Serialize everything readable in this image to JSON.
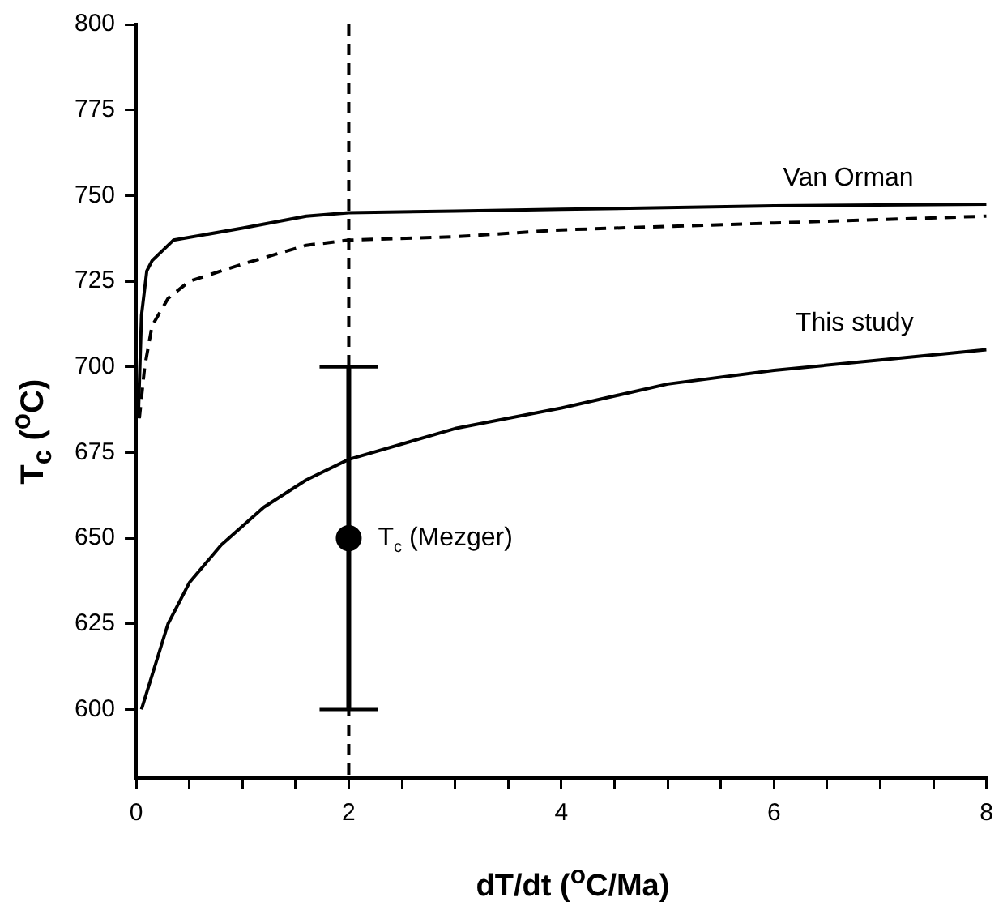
{
  "chart_data": {
    "type": "line",
    "xlabel": "dT/dt  ($^{o}$C/Ma)",
    "ylabel": "T$_{c}$ ($^{o}$C)",
    "xlim": [
      0,
      8
    ],
    "xticks": [
      0,
      {
        "value": 0.5,
        "label": null
      },
      {
        "value": 1,
        "label": null
      },
      {
        "value": 1.5,
        "label": null
      },
      2,
      {
        "value": 2.5,
        "label": null
      },
      {
        "value": 3,
        "label": null
      },
      {
        "value": 3.5,
        "label": null
      },
      4,
      {
        "value": 4.5,
        "label": null
      },
      {
        "value": 5,
        "label": null
      },
      {
        "value": 5.5,
        "label": null
      },
      6,
      {
        "value": 6.5,
        "label": null
      },
      {
        "value": 7,
        "label": null
      },
      {
        "value": 7.5,
        "label": null
      },
      8
    ],
    "ylim": [
      580,
      800
    ],
    "yticks": [
      600,
      625,
      650,
      675,
      700,
      725,
      750,
      775,
      800
    ],
    "grid": false,
    "legend": false,
    "series": [
      {
        "name": "Van Orman",
        "color": "#000000",
        "line_style": "solid",
        "marker": "none",
        "x": [
          0.02,
          0.05,
          0.1,
          0.15,
          0.35,
          1,
          1.6,
          2,
          3,
          4,
          6,
          8
        ],
        "values": [
          685,
          715,
          728,
          731,
          737,
          740.5,
          744,
          745,
          745.5,
          746,
          747,
          747.5
        ]
      },
      {
        "color": "#000000",
        "line_style": "dashed",
        "marker": "none",
        "x": [
          0.03,
          0.08,
          0.15,
          0.3,
          0.5,
          1,
          1.6,
          2,
          3,
          4,
          6,
          8
        ],
        "values": [
          685,
          700,
          712,
          720,
          725,
          730,
          735.5,
          737,
          738,
          740,
          742,
          744
        ]
      },
      {
        "name": "This study",
        "color": "#000000",
        "line_style": "solid",
        "marker": "none",
        "x": [
          0.05,
          0.15,
          0.3,
          0.5,
          0.8,
          1.2,
          1.6,
          2,
          3,
          4,
          5,
          6,
          7,
          8
        ],
        "values": [
          600,
          610,
          625,
          637,
          648,
          659,
          667,
          673,
          682,
          688,
          695,
          699,
          702,
          705
        ]
      },
      {
        "type": "scatter",
        "color": "#000000",
        "marker": "circle",
        "x": [
          2
        ],
        "values": [
          650
        ],
        "errors": [
          50
        ]
      }
    ],
    "ref_lines": [
      {
        "axis": "x",
        "value": 2,
        "line_style": "dashed",
        "color": "#000000"
      }
    ],
    "annotations": [
      {
        "text": "T$_{c}$ (Mezger)",
        "x": 2,
        "y": 650
      }
    ]
  }
}
